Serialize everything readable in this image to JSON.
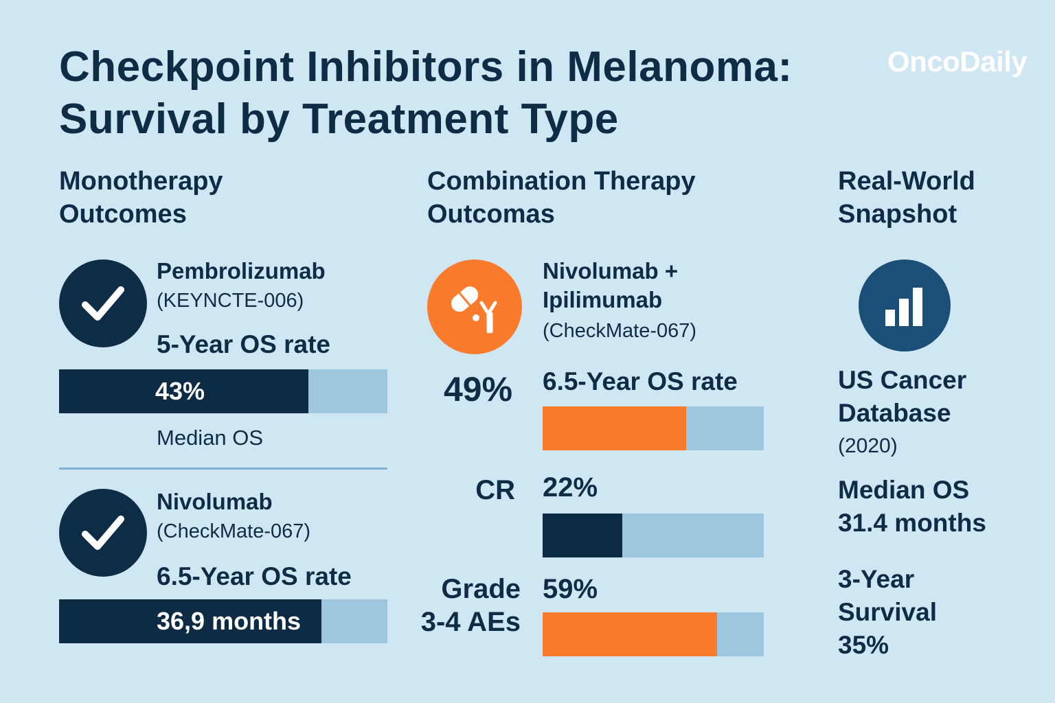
{
  "header": {
    "title_line1": "Checkpoint Inhibitors in Melanoma:",
    "title_line2": "Survival by Treatment Type",
    "brand": "OncoDaily"
  },
  "monotherapy": {
    "heading_line1": "Monotherapy",
    "heading_line2": "Outcomes",
    "items": [
      {
        "drug": "Pembrolizumab",
        "trial": "(KEYNCTE-006)",
        "metric": "5-Year OS rate",
        "bar_label": "43%",
        "bar_fraction": 0.76,
        "note": "Median OS"
      },
      {
        "drug": "Nivolumab",
        "trial": "(CheckMate-067)",
        "metric": "6.5-Year OS rate",
        "bar_label": "36,9 months",
        "bar_fraction": 0.8
      }
    ]
  },
  "combination": {
    "heading_line1": "Combination Therapy",
    "heading_line2": "Outcomas",
    "drug_line1": "Nivolumab +",
    "drug_line2": "Ipilimumab",
    "trial": "(CheckMate-067)",
    "os_value": "49%",
    "os_metric": "6.5-Year OS rate",
    "os_fraction": 0.65,
    "cr_label": "CR",
    "cr_value": "22%",
    "cr_fraction": 0.36,
    "ae_label_line1": "Grade",
    "ae_label_line2": "3-4 AEs",
    "ae_value": "59%",
    "ae_fraction": 0.79
  },
  "realworld": {
    "heading_line1": "Real-World",
    "heading_line2": "Snapshot",
    "source_line1": "US Cancer",
    "source_line2": "Database",
    "year": "(2020)",
    "median_label": "Median OS",
    "median_value": "31.4 months",
    "surv_line1": "3-Year",
    "surv_line2": "Survival",
    "surv_value": "35%"
  },
  "colors": {
    "background": "#cfe6f3",
    "navy": "#0e2b45",
    "orange": "#fb7b2d",
    "bar_track": "#9fc6df",
    "rw_icon": "#1c4f78"
  },
  "icons": {
    "check": "check-icon",
    "pill_antibody": "pill-antibody-icon",
    "bar_chart": "bar-chart-icon"
  }
}
